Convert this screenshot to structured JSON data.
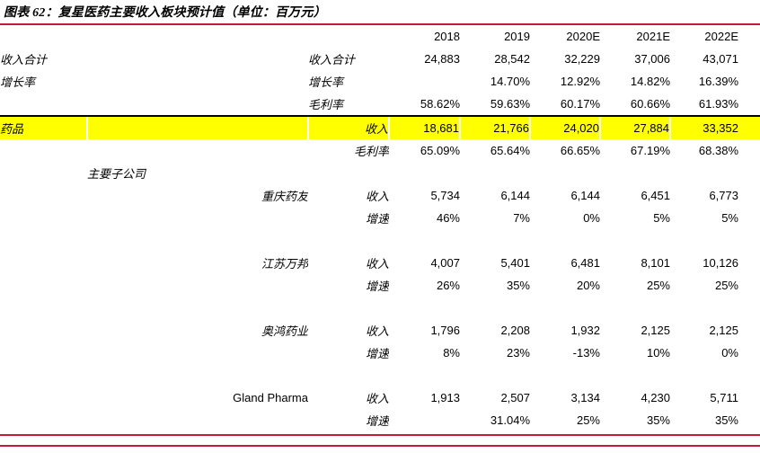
{
  "title": "图表 62：复星医药主要收入板块预计值（单位：百万元）",
  "colors": {
    "accent_red": "#c11d38",
    "highlight_yellow": "#ffff00",
    "divider_black": "#000000"
  },
  "table": {
    "years": [
      "2018",
      "2019",
      "2020E",
      "2021E",
      "2022E"
    ],
    "rows": [
      {
        "label": "收入合计",
        "metric": "收入合计",
        "metricAlign": "left",
        "values": [
          "24,883",
          "28,542",
          "32,229",
          "37,006",
          "43,071"
        ]
      },
      {
        "label": "增长率",
        "metric": "增长率",
        "metricAlign": "left",
        "values": [
          "",
          "14.70%",
          "12.92%",
          "14.82%",
          "16.39%"
        ]
      },
      {
        "metric": "毛利率",
        "metricAlign": "left",
        "values": [
          "58.62%",
          "59.63%",
          "60.17%",
          "60.66%",
          "61.93%"
        ]
      },
      {
        "label": "药品",
        "metric": "收入",
        "metricAlign": "right",
        "highlight": true,
        "values": [
          "18,681",
          "21,766",
          "24,020",
          "27,884",
          "33,352"
        ]
      },
      {
        "metric": "毛利率",
        "metricAlign": "right",
        "values": [
          "65.09%",
          "65.64%",
          "66.65%",
          "67.19%",
          "68.38%"
        ]
      },
      {
        "sub": "主要子公司",
        "subAlign": "left",
        "values": [
          "",
          "",
          "",
          "",
          ""
        ]
      },
      {
        "sub": "重庆药友",
        "subAlign": "right",
        "metric": "收入",
        "metricAlign": "right",
        "values": [
          "5,734",
          "6,144",
          "6,144",
          "6,451",
          "6,773"
        ]
      },
      {
        "metric": "增速",
        "metricAlign": "right",
        "values": [
          "46%",
          "7%",
          "0%",
          "5%",
          "5%"
        ]
      },
      {
        "spacer": true
      },
      {
        "sub": "江苏万邦",
        "subAlign": "right",
        "metric": "收入",
        "metricAlign": "right",
        "values": [
          "4,007",
          "5,401",
          "6,481",
          "8,101",
          "10,126"
        ]
      },
      {
        "metric": "增速",
        "metricAlign": "right",
        "values": [
          "26%",
          "35%",
          "20%",
          "25%",
          "25%"
        ]
      },
      {
        "spacer": true
      },
      {
        "sub": "奥鸿药业",
        "subAlign": "right",
        "metric": "收入",
        "metricAlign": "right",
        "values": [
          "1,796",
          "2,208",
          "1,932",
          "2,125",
          "2,125"
        ]
      },
      {
        "metric": "增速",
        "metricAlign": "right",
        "values": [
          "8%",
          "23%",
          "-13%",
          "10%",
          "0%"
        ]
      },
      {
        "spacer": true
      },
      {
        "sub": "Gland Pharma",
        "subAlign": "right",
        "latin": true,
        "metric": "收入",
        "metricAlign": "right",
        "values": [
          "1,913",
          "2,507",
          "3,134",
          "4,230",
          "5,711"
        ]
      },
      {
        "metric": "增速",
        "metricAlign": "right",
        "values": [
          "",
          "31.04%",
          "25%",
          "35%",
          "35%"
        ]
      }
    ]
  }
}
